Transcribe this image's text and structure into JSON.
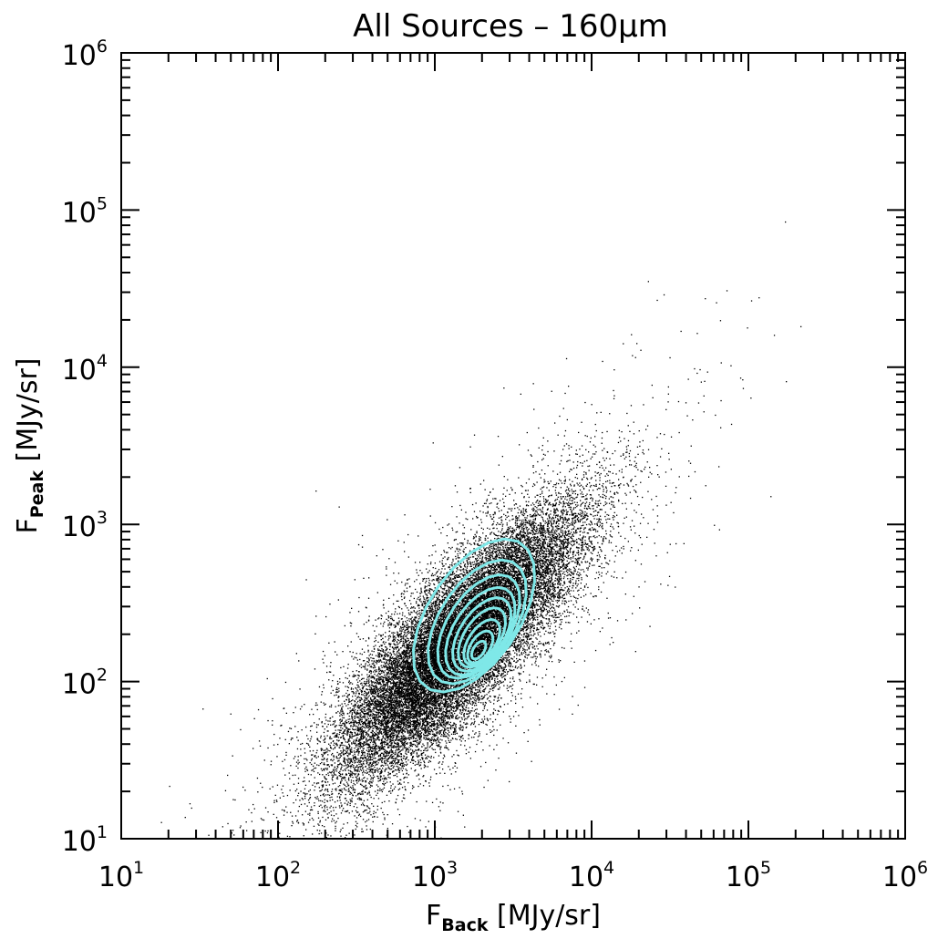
{
  "chart_data": {
    "type": "scatter",
    "title": "All Sources – 160μm",
    "xlabel": {
      "main": "F",
      "sub": "Back",
      "unit": " [MJy/sr]"
    },
    "ylabel": {
      "main": "F",
      "sub": "Peak",
      "unit": " [MJy/sr]"
    },
    "x_scale": "log",
    "y_scale": "log",
    "xlim": [
      10,
      1000000
    ],
    "ylim": [
      10,
      1000000
    ],
    "x_ticks": [
      {
        "base": "10",
        "exp": "1",
        "value": 10
      },
      {
        "base": "10",
        "exp": "2",
        "value": 100
      },
      {
        "base": "10",
        "exp": "3",
        "value": 1000
      },
      {
        "base": "10",
        "exp": "4",
        "value": 10000
      },
      {
        "base": "10",
        "exp": "5",
        "value": 100000
      },
      {
        "base": "10",
        "exp": "6",
        "value": 1000000
      }
    ],
    "y_ticks": [
      {
        "base": "10",
        "exp": "1",
        "value": 10
      },
      {
        "base": "10",
        "exp": "2",
        "value": 100
      },
      {
        "base": "10",
        "exp": "3",
        "value": 1000
      },
      {
        "base": "10",
        "exp": "4",
        "value": 10000
      },
      {
        "base": "10",
        "exp": "5",
        "value": 100000
      },
      {
        "base": "10",
        "exp": "6",
        "value": 1000000
      }
    ],
    "grid": false,
    "point_color": "#000000",
    "contour_color": "#7fe8e8",
    "distribution": {
      "log_x_mean": 3.15,
      "log_y_mean": 2.25,
      "log_x_std": 0.38,
      "log_y_std": 0.42,
      "correlation": 0.82,
      "log_x_range_of_points": [
        1.1,
        5.4
      ],
      "log_y_range_of_points": [
        1.0,
        5.55
      ]
    },
    "contour_levels": [
      {
        "log_x_center": 3.25,
        "log_y_center": 2.42,
        "log_x_halfwidth": 0.77,
        "log_y_halfwidth": 0.85
      },
      {
        "log_x_center": 3.27,
        "log_y_center": 2.38,
        "log_x_halfwidth": 0.62,
        "log_y_halfwidth": 0.7
      },
      {
        "log_x_center": 3.28,
        "log_y_center": 2.35,
        "log_x_halfwidth": 0.52,
        "log_y_halfwidth": 0.58
      },
      {
        "log_x_center": 3.29,
        "log_y_center": 2.32,
        "log_x_halfwidth": 0.44,
        "log_y_halfwidth": 0.49
      },
      {
        "log_x_center": 3.3,
        "log_y_center": 2.3,
        "log_x_halfwidth": 0.37,
        "log_y_halfwidth": 0.41
      },
      {
        "log_x_center": 3.3,
        "log_y_center": 2.28,
        "log_x_halfwidth": 0.3,
        "log_y_halfwidth": 0.33
      },
      {
        "log_x_center": 3.3,
        "log_y_center": 2.25,
        "log_x_halfwidth": 0.23,
        "log_y_halfwidth": 0.25
      },
      {
        "log_x_center": 3.29,
        "log_y_center": 2.22,
        "log_x_halfwidth": 0.16,
        "log_y_halfwidth": 0.18
      },
      {
        "log_x_center": 3.28,
        "log_y_center": 2.2,
        "log_x_halfwidth": 0.09,
        "log_y_halfwidth": 0.1
      }
    ]
  }
}
